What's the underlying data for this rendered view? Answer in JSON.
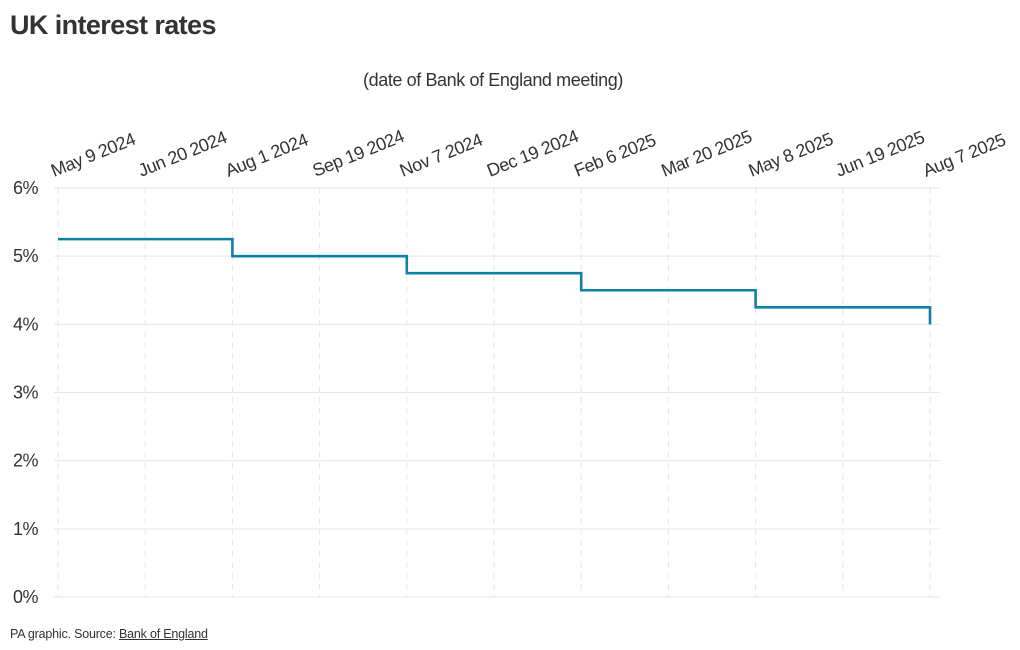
{
  "title": "UK interest rates",
  "footer": {
    "prefix": "PA graphic. Source: ",
    "source_link": "Bank of England"
  },
  "colors": {
    "line": "#0e7fa6",
    "grid": "#e6e6e6",
    "text": "#333333"
  },
  "chart_data": {
    "type": "line",
    "step": true,
    "xlabel": "(date of Bank of England meeting)",
    "ylabel": "",
    "x_axis_position": "top",
    "x_ticks": [
      "May 9 2024",
      "Jun 20 2024",
      "Aug 1 2024",
      "Sep 19 2024",
      "Nov 7 2024",
      "Dec 19 2024",
      "Feb 6 2025",
      "Mar 20 2025",
      "May 8 2025",
      "Jun 19 2025",
      "Aug 7 2025"
    ],
    "y_ticks": [
      "0%",
      "1%",
      "2%",
      "3%",
      "4%",
      "5%",
      "6%"
    ],
    "ylim": [
      0,
      6
    ],
    "grid": true,
    "legend": "none",
    "series": [
      {
        "x": [
          "May 9 2024",
          "Jun 20 2024",
          "Aug 1 2024",
          "Sep 19 2024",
          "Nov 7 2024",
          "Dec 19 2024",
          "Feb 6 2025",
          "Mar 20 2025",
          "May 8 2025",
          "Jun 19 2025",
          "Aug 7 2025"
        ],
        "y": [
          5.25,
          5.25,
          5.0,
          5.0,
          4.75,
          4.75,
          4.5,
          4.5,
          4.25,
          4.25,
          4.0
        ]
      }
    ]
  }
}
